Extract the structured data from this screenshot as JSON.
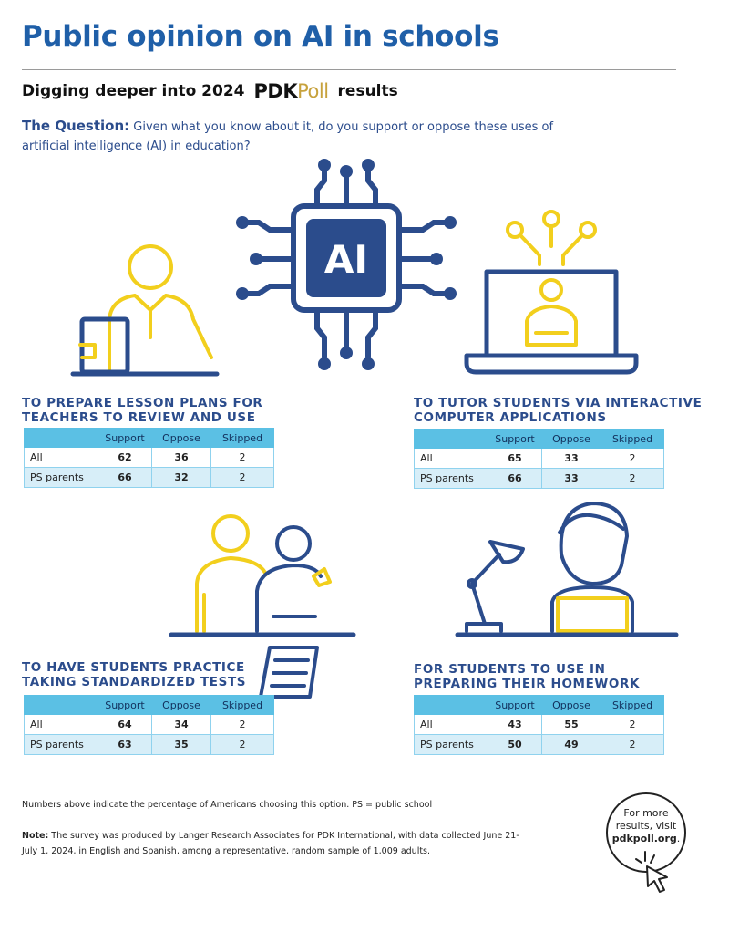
{
  "header": {
    "title": "Public opinion on AI in schools",
    "subtitle_before": "Digging deeper into 2024",
    "logo_pdk": "PDK",
    "logo_poll": "Poll",
    "subtitle_after": "results"
  },
  "question": {
    "label": "The Question:",
    "text": "Given what you know about it, do you support or oppose these uses of artificial intelligence (AI) in education?"
  },
  "ai_chip_label": "AI",
  "table_columns": [
    "Support",
    "Oppose",
    "Skipped"
  ],
  "sections": [
    {
      "heading_line1": "TO PREPARE LESSON PLANS FOR",
      "heading_line2": "TEACHERS TO REVIEW AND USE",
      "rows": [
        {
          "label": "All",
          "support": "62",
          "oppose": "36",
          "skipped": "2"
        },
        {
          "label": "PS parents",
          "support": "66",
          "oppose": "32",
          "skipped": "2"
        }
      ]
    },
    {
      "heading_line1": "TO TUTOR STUDENTS VIA INTERACTIVE",
      "heading_line2": "COMPUTER APPLICATIONS",
      "rows": [
        {
          "label": "All",
          "support": "65",
          "oppose": "33",
          "skipped": "2"
        },
        {
          "label": "PS parents",
          "support": "66",
          "oppose": "33",
          "skipped": "2"
        }
      ]
    },
    {
      "heading_line1": "TO HAVE STUDENTS PRACTICE",
      "heading_line2": "TAKING STANDARDIZED TESTS",
      "rows": [
        {
          "label": "All",
          "support": "64",
          "oppose": "34",
          "skipped": "2"
        },
        {
          "label": "PS parents",
          "support": "63",
          "oppose": "35",
          "skipped": "2"
        }
      ]
    },
    {
      "heading_line1": "FOR STUDENTS TO USE IN",
      "heading_line2": "PREPARING THEIR HOMEWORK",
      "rows": [
        {
          "label": "All",
          "support": "43",
          "oppose": "55",
          "skipped": "2"
        },
        {
          "label": "PS parents",
          "support": "50",
          "oppose": "49",
          "skipped": "2"
        }
      ]
    }
  ],
  "footnote": "Numbers above indicate the percentage of Americans choosing this option. PS = public school",
  "note": {
    "label": "Note:",
    "text": "The survey was produced by Langer Research Associates for PDK International, with data collected June 21-July 1, 2024, in English and Spanish, among a representative, random sample of 1,009 adults."
  },
  "cta": {
    "line1": "For more",
    "line2": "results, visit",
    "link": "pdkpoll.org",
    "period": "."
  },
  "colors": {
    "navy": "#2b4c8c",
    "title_blue": "#1f5fa8",
    "yellow": "#f2cf1d",
    "table_header": "#5bc0e4",
    "row_alt": "#d7eef8"
  }
}
